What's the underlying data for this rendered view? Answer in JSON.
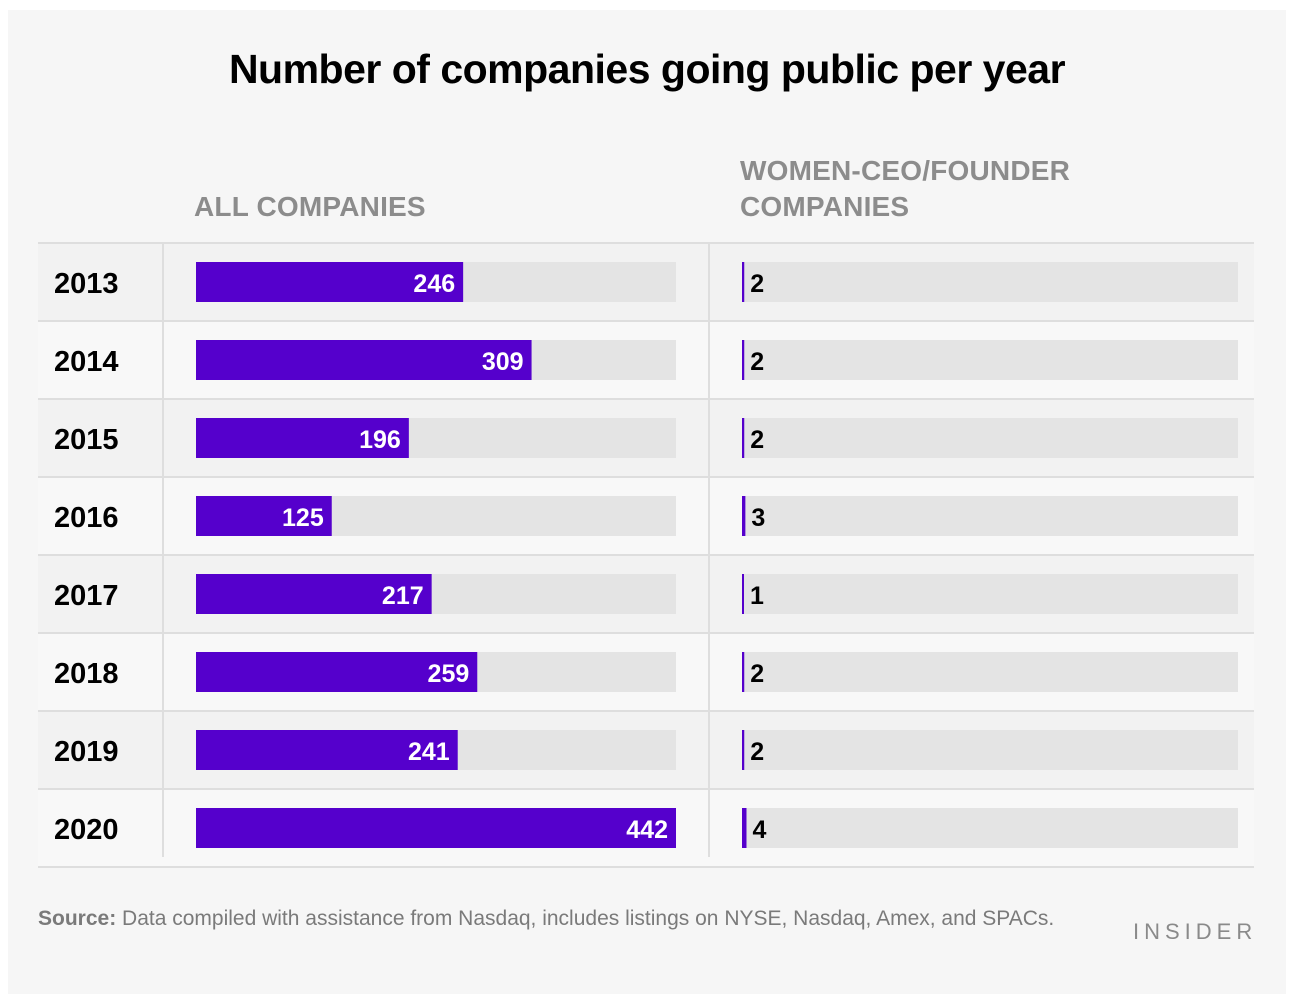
{
  "title": "Number of companies going public per year",
  "columns": {
    "all": "ALL COMPANIES",
    "women_line1": "WOMEN-CEO/FOUNDER",
    "women_line2": "COMPANIES"
  },
  "colors": {
    "bar": "#5500cc",
    "track": "#e4e4e4",
    "row_shaded": "#f2f2f2",
    "row_plain": "#f8f8f8",
    "divider": "#dedede"
  },
  "chart_data": {
    "type": "bar",
    "orientation": "horizontal",
    "categories": [
      "2013",
      "2014",
      "2015",
      "2016",
      "2017",
      "2018",
      "2019",
      "2020"
    ],
    "series": [
      {
        "name": "ALL COMPANIES",
        "values": [
          246,
          309,
          196,
          125,
          217,
          259,
          241,
          442
        ]
      },
      {
        "name": "WOMEN-CEO/FOUNDER COMPANIES",
        "values": [
          2,
          2,
          2,
          3,
          1,
          2,
          2,
          4
        ]
      }
    ],
    "xlim_all": [
      0,
      442
    ],
    "xlim_women": [
      0,
      442
    ],
    "grid": false,
    "legend": "column headers"
  },
  "footer": {
    "source_label": "Source:",
    "source_text": "Data compiled with assistance from Nasdaq, includes listings on NYSE, Nasdaq, Amex, and SPACs.",
    "brand": "INSIDER"
  }
}
